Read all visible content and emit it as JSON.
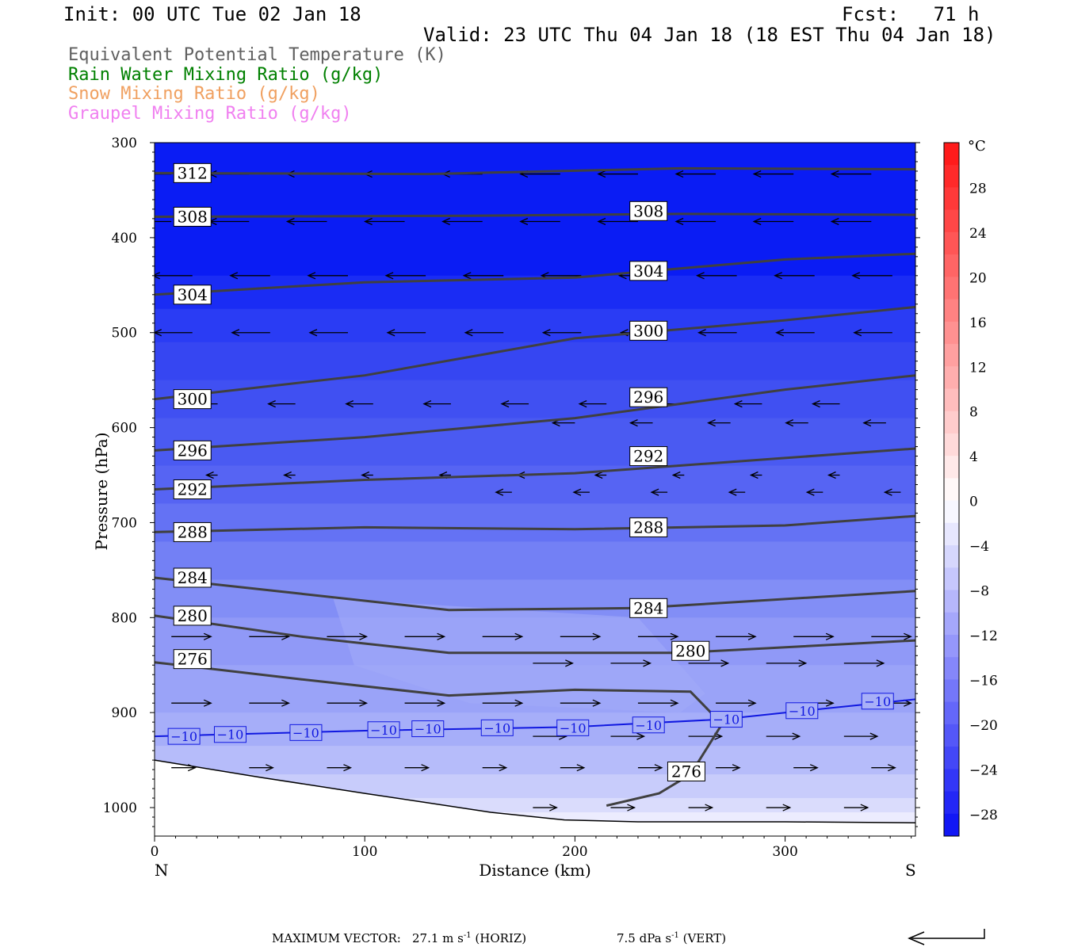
{
  "header": {
    "init": "Init: 00 UTC Tue 02 Jan 18",
    "fcst": "Fcst:   71 h",
    "valid": "Valid: 23 UTC Thu 04 Jan 18 (18 EST Thu 04 Jan 18)"
  },
  "fields": [
    {
      "label": "Equivalent Potential Temperature (K)",
      "color": "#606060"
    },
    {
      "label": "Rain Water Mixing Ratio (g/kg)",
      "color": "#008000"
    },
    {
      "label": "Snow Mixing Ratio (g/kg)",
      "color": "#f0a060"
    },
    {
      "label": "Graupel Mixing Ratio (g/kg)",
      "color": "#f080f0"
    }
  ],
  "footer": {
    "max_vector_label": "MAXIMUM VECTOR:",
    "horiz_value": "27.1 m s",
    "horiz_unit": "(HORIZ)",
    "vert_value": "7.5 dPa s",
    "vert_unit": "(VERT)",
    "exponent": "-1"
  },
  "chart_data": {
    "type": "contour",
    "xlabel": "Distance (km)",
    "ylabel": "Pressure (hPa)",
    "xlim": [
      0,
      362
    ],
    "ylim": [
      300,
      1030
    ],
    "x_ticks": [
      0,
      100,
      200,
      300
    ],
    "y_ticks": [
      300,
      400,
      500,
      600,
      700,
      800,
      900,
      1000
    ],
    "left_end_label": "N",
    "right_end_label": "S",
    "colorbar": {
      "unit": "°C",
      "tick_labels": [
        "28",
        "24",
        "20",
        "16",
        "12",
        "8",
        "4",
        "0",
        "−4",
        "−8",
        "−12",
        "−16",
        "−20",
        "−24",
        "−28"
      ],
      "levels": [
        32,
        30,
        28,
        26,
        24,
        22,
        20,
        18,
        16,
        14,
        12,
        10,
        8,
        6,
        4,
        2,
        0,
        -2,
        -4,
        -6,
        -8,
        -10,
        -12,
        -14,
        -16,
        -18,
        -20,
        -22,
        -24,
        -26,
        -28,
        -30
      ]
    },
    "theta_e_contours": [
      {
        "label": "312",
        "x": [
          0,
          130,
          250,
          362
        ],
        "p": [
          332,
          333,
          327,
          328
        ]
      },
      {
        "label": "308",
        "x": [
          0,
          150,
          250,
          362
        ],
        "p": [
          378,
          377,
          375,
          376
        ]
      },
      {
        "label": "304",
        "x": [
          0,
          100,
          200,
          300,
          362
        ],
        "p": [
          460,
          447,
          442,
          423,
          417
        ]
      },
      {
        "label": "300",
        "x": [
          0,
          100,
          200,
          300,
          362
        ],
        "p": [
          570,
          545,
          506,
          487,
          473
        ]
      },
      {
        "label": "296",
        "x": [
          0,
          100,
          200,
          300,
          362
        ],
        "p": [
          624,
          610,
          590,
          560,
          545
        ]
      },
      {
        "label": "292",
        "x": [
          0,
          100,
          200,
          300,
          362
        ],
        "p": [
          665,
          655,
          648,
          632,
          622
        ]
      },
      {
        "label": "288",
        "x": [
          0,
          100,
          200,
          300,
          362
        ],
        "p": [
          710,
          705,
          707,
          703,
          693
        ]
      },
      {
        "label": "284",
        "x": [
          0,
          70,
          140,
          230,
          362
        ],
        "p": [
          758,
          775,
          792,
          790,
          772
        ]
      },
      {
        "label": "280",
        "x": [
          0,
          70,
          140,
          250,
          362
        ],
        "p": [
          798,
          820,
          837,
          837,
          824
        ]
      },
      {
        "label": "276",
        "x": [
          0,
          70,
          140,
          200,
          255,
          270,
          255,
          240,
          215
        ],
        "p": [
          847,
          865,
          882,
          876,
          878,
          912,
          965,
          985,
          998
        ]
      }
    ],
    "isotherm": {
      "label": "−10",
      "value_c": -10,
      "x": [
        0,
        100,
        200,
        270,
        300,
        362
      ],
      "p": [
        925,
        919,
        915,
        907,
        900,
        886
      ]
    },
    "ground": {
      "x": [
        0,
        50,
        100,
        130,
        160,
        195,
        230,
        300,
        362
      ],
      "p": [
        950,
        968,
        985,
        995,
        1005,
        1013,
        1015,
        1015,
        1016
      ]
    }
  }
}
